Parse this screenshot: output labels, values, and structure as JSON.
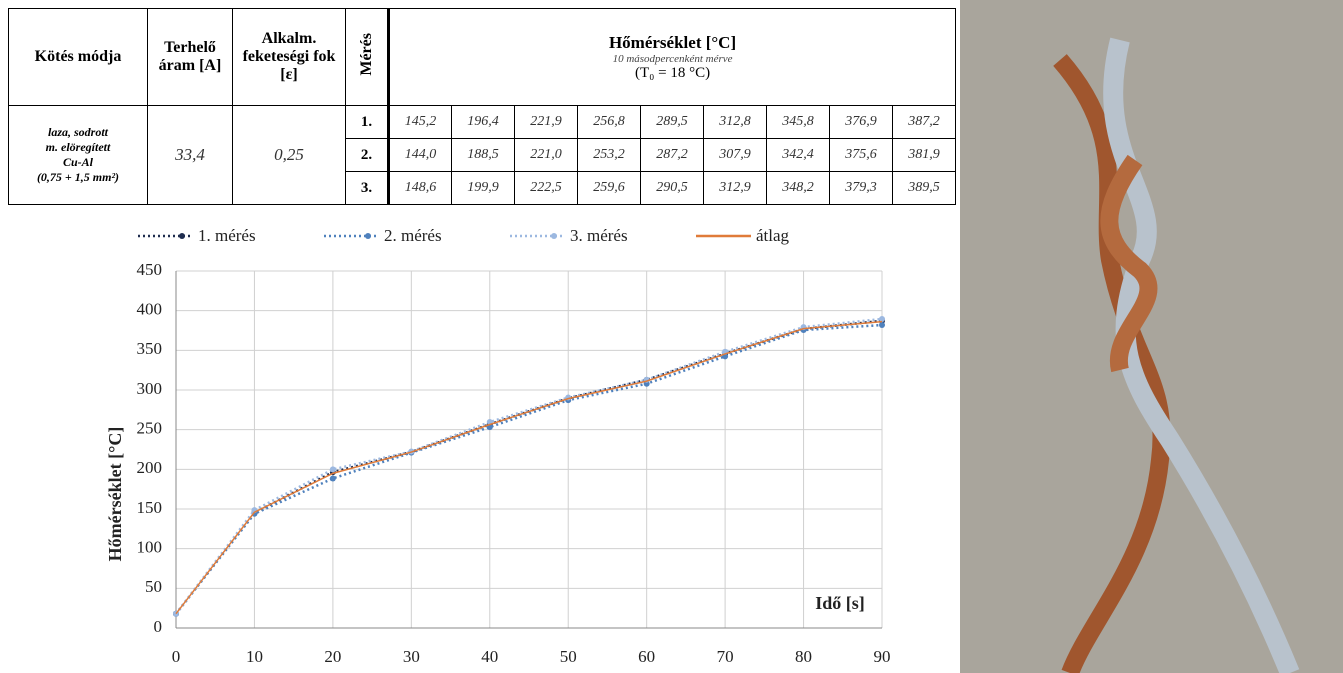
{
  "table": {
    "header": {
      "connection": "Kötés módja",
      "current": "Terhelő áram [A]",
      "emissivity": "Alkalm. feketeségi fok [ε]",
      "measurement": "Mérés",
      "temperature": "Hőmérséklet [°C]",
      "temperature_note": "10 másodpercenként mérve",
      "temperature_t0": "(T₀ = 18 °C)"
    },
    "description": [
      "laza, sodrott",
      "m. elöregített",
      "Cu-Al",
      "(0,75 + 1,5 mm²)"
    ],
    "current": "33,4",
    "emissivity": "0,25",
    "rows": [
      {
        "label": "1.",
        "values": [
          "145,2",
          "196,4",
          "221,9",
          "256,8",
          "289,5",
          "312,8",
          "345,8",
          "376,9",
          "387,2"
        ]
      },
      {
        "label": "2.",
        "values": [
          "144,0",
          "188,5",
          "221,0",
          "253,2",
          "287,2",
          "307,9",
          "342,4",
          "375,6",
          "381,9"
        ]
      },
      {
        "label": "3.",
        "values": [
          "148,6",
          "199,9",
          "222,5",
          "259,6",
          "290,5",
          "312,9",
          "348,2",
          "379,3",
          "389,5"
        ]
      }
    ]
  },
  "chart_data": {
    "type": "line",
    "x_label": "Idő  [s]",
    "y_label": "Hőmérséklet [°C]",
    "x": [
      0,
      10,
      20,
      30,
      40,
      50,
      60,
      70,
      80,
      90
    ],
    "series": [
      {
        "name": "1. mérés",
        "color": "#1f2d4f",
        "dash": "dotted",
        "marker": true,
        "values": [
          18,
          145.2,
          196.4,
          221.9,
          256.8,
          289.5,
          312.8,
          345.8,
          376.9,
          387.2
        ]
      },
      {
        "name": "2. mérés",
        "color": "#4f81bd",
        "dash": "dotted",
        "marker": true,
        "values": [
          18,
          144.0,
          188.5,
          221.0,
          253.2,
          287.2,
          307.9,
          342.4,
          375.6,
          381.9
        ]
      },
      {
        "name": "3. mérés",
        "color": "#9cb8e0",
        "dash": "dotted",
        "marker": true,
        "values": [
          18,
          148.6,
          199.9,
          222.5,
          259.6,
          290.5,
          312.9,
          348.2,
          379.3,
          389.5
        ]
      },
      {
        "name": "átlag",
        "color": "#e07b39",
        "dash": "solid",
        "marker": false,
        "values": [
          18,
          145.9,
          194.9,
          221.8,
          256.5,
          289.1,
          311.2,
          345.5,
          377.3,
          386.2
        ]
      }
    ],
    "xlim": [
      0,
      90
    ],
    "xticks": [
      0,
      10,
      20,
      30,
      40,
      50,
      60,
      70,
      80,
      90
    ],
    "ylim": [
      0,
      450
    ],
    "yticks": [
      0,
      50,
      100,
      150,
      200,
      250,
      300,
      350,
      400,
      450
    ],
    "grid": true
  }
}
